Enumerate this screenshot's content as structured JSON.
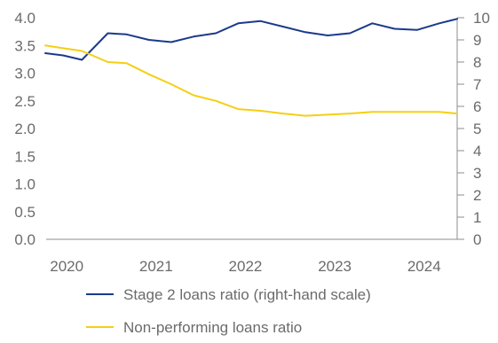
{
  "chart_data": {
    "type": "line",
    "x_ticks": [
      "2020",
      "2021",
      "2022",
      "2023",
      "2024"
    ],
    "y_left": {
      "ticks": [
        "0.0",
        "0.5",
        "1.0",
        "1.5",
        "2.0",
        "2.5",
        "3.0",
        "3.5",
        "4.0"
      ],
      "ylim": [
        0,
        4
      ]
    },
    "y_right": {
      "ticks": [
        "0",
        "1",
        "2",
        "3",
        "4",
        "5",
        "6",
        "7",
        "8",
        "9",
        "10"
      ],
      "ylim": [
        0,
        10
      ]
    },
    "x_range": [
      2019.85,
      2024.45
    ],
    "grid": false,
    "legend_position": "bottom",
    "series": [
      {
        "name": "Stage 2 loans ratio (right-hand scale)",
        "axis": "right",
        "color": "#1a3a8c",
        "x": [
          2019.84,
          2020.04,
          2020.25,
          2020.54,
          2020.75,
          2021.0,
          2021.25,
          2021.5,
          2021.75,
          2022.0,
          2022.25,
          2022.5,
          2022.75,
          2023.0,
          2023.25,
          2023.5,
          2023.75,
          2024.0,
          2024.25,
          2024.45
        ],
        "values": [
          8.4,
          8.3,
          8.1,
          9.3,
          9.25,
          9.0,
          8.9,
          9.15,
          9.3,
          9.75,
          9.85,
          9.6,
          9.35,
          9.2,
          9.3,
          9.75,
          9.5,
          9.45,
          9.75,
          9.95
        ]
      },
      {
        "name": "Non-performing loans ratio",
        "axis": "left",
        "color": "#f5cf14",
        "x": [
          2019.84,
          2020.04,
          2020.25,
          2020.54,
          2020.75,
          2021.0,
          2021.25,
          2021.5,
          2021.75,
          2022.0,
          2022.25,
          2022.5,
          2022.75,
          2023.0,
          2023.25,
          2023.5,
          2023.75,
          2024.0,
          2024.25,
          2024.45
        ],
        "values": [
          3.5,
          3.45,
          3.4,
          3.2,
          3.18,
          2.98,
          2.8,
          2.6,
          2.5,
          2.35,
          2.32,
          2.27,
          2.23,
          2.25,
          2.27,
          2.3,
          2.3,
          2.3,
          2.3,
          2.27
        ]
      }
    ]
  }
}
